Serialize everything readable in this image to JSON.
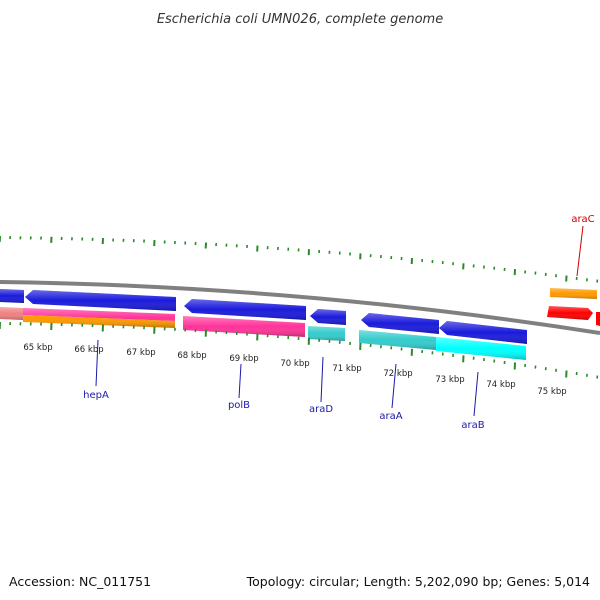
{
  "title": "Escherichia coli UMN026, complete genome",
  "footer": {
    "accession": "Accession: NC_011751",
    "summary": "Topology: circular; Length: 5,202,090 bp; Genes: 5,014"
  },
  "ticks": {
    "labels": [
      "65 kbp",
      "66 kbp",
      "67 kbp",
      "68 kbp",
      "69 kbp",
      "70 kbp",
      "71 kbp",
      "72 kbp",
      "73 kbp",
      "74 kbp",
      "75 kbp"
    ],
    "major_color": "#2a8a2a",
    "minor_color": "#2a8a2a"
  },
  "backbone_color": "#808080",
  "gene_labels": [
    {
      "name": "hepA",
      "color": "#1a1aaa"
    },
    {
      "name": "polB",
      "color": "#1a1aaa"
    },
    {
      "name": "araD",
      "color": "#1a1aaa"
    },
    {
      "name": "araA",
      "color": "#1a1aaa"
    },
    {
      "name": "araB",
      "color": "#1a1aaa"
    },
    {
      "name": "araC",
      "color": "#cc0000"
    }
  ],
  "colors": {
    "cds_blue": "#1a1adc",
    "pink": "#ff3399",
    "orange": "#ff9900",
    "teal": "#33cccc",
    "cyan": "#00ffff",
    "red": "#ff0000",
    "salmon": "#f08080"
  }
}
